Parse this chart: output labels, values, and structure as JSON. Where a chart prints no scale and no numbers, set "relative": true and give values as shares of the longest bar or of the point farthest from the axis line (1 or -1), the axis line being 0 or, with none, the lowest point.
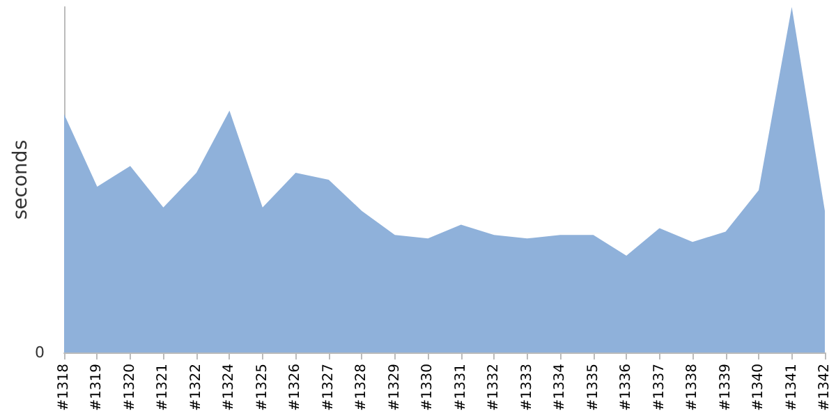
{
  "chart_data": {
    "type": "area",
    "ylabel": "seconds",
    "relative": true,
    "grid": false,
    "marker": "none",
    "categories": [
      "#1318",
      "#1319",
      "#1320",
      "#1321",
      "#1322",
      "#1324",
      "#1325",
      "#1326",
      "#1327",
      "#1328",
      "#1329",
      "#1330",
      "#1331",
      "#1332",
      "#1333",
      "#1334",
      "#1335",
      "#1336",
      "#1337",
      "#1338",
      "#1339",
      "#1340",
      "#1341",
      "#1342"
    ],
    "series": [
      {
        "color": "#8fb1da",
        "values": [
          0.69,
          0.48,
          0.54,
          0.42,
          0.52,
          0.7,
          0.42,
          0.52,
          0.5,
          0.41,
          0.34,
          0.33,
          0.37,
          0.34,
          0.33,
          0.34,
          0.34,
          0.28,
          0.36,
          0.32,
          0.35,
          0.47,
          1,
          0.41
        ]
      }
    ],
    "annotations": [
      "0"
    ]
  }
}
